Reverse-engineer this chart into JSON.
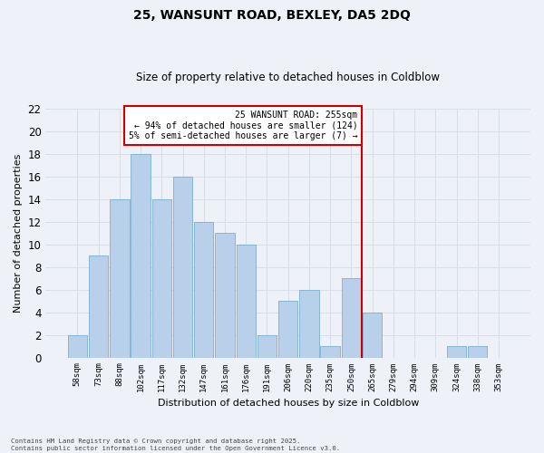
{
  "title": "25, WANSUNT ROAD, BEXLEY, DA5 2DQ",
  "subtitle": "Size of property relative to detached houses in Coldblow",
  "xlabel": "Distribution of detached houses by size in Coldblow",
  "ylabel": "Number of detached properties",
  "categories": [
    "58sqm",
    "73sqm",
    "88sqm",
    "102sqm",
    "117sqm",
    "132sqm",
    "147sqm",
    "161sqm",
    "176sqm",
    "191sqm",
    "206sqm",
    "220sqm",
    "235sqm",
    "250sqm",
    "265sqm",
    "279sqm",
    "294sqm",
    "309sqm",
    "324sqm",
    "338sqm",
    "353sqm"
  ],
  "values": [
    2,
    9,
    14,
    18,
    14,
    16,
    12,
    11,
    10,
    2,
    5,
    6,
    1,
    7,
    4,
    0,
    0,
    0,
    1,
    1,
    0
  ],
  "bar_color": "#b8d0ea",
  "bar_edge_color": "#7aaed4",
  "background_color": "#eef2f8",
  "grid_color": "#d8dfe8",
  "red_line_x": 13.5,
  "annotation_text": "25 WANSUNT ROAD: 255sqm\n← 94% of detached houses are smaller (124)\n5% of semi-detached houses are larger (7) →",
  "annotation_box_color": "#ffffff",
  "annotation_box_edge_color": "#cc0000",
  "footer_text": "Contains HM Land Registry data © Crown copyright and database right 2025.\nContains public sector information licensed under the Open Government Licence v3.0.",
  "ylim": [
    0,
    22
  ],
  "yticks": [
    0,
    2,
    4,
    6,
    8,
    10,
    12,
    14,
    16,
    18,
    20,
    22
  ]
}
